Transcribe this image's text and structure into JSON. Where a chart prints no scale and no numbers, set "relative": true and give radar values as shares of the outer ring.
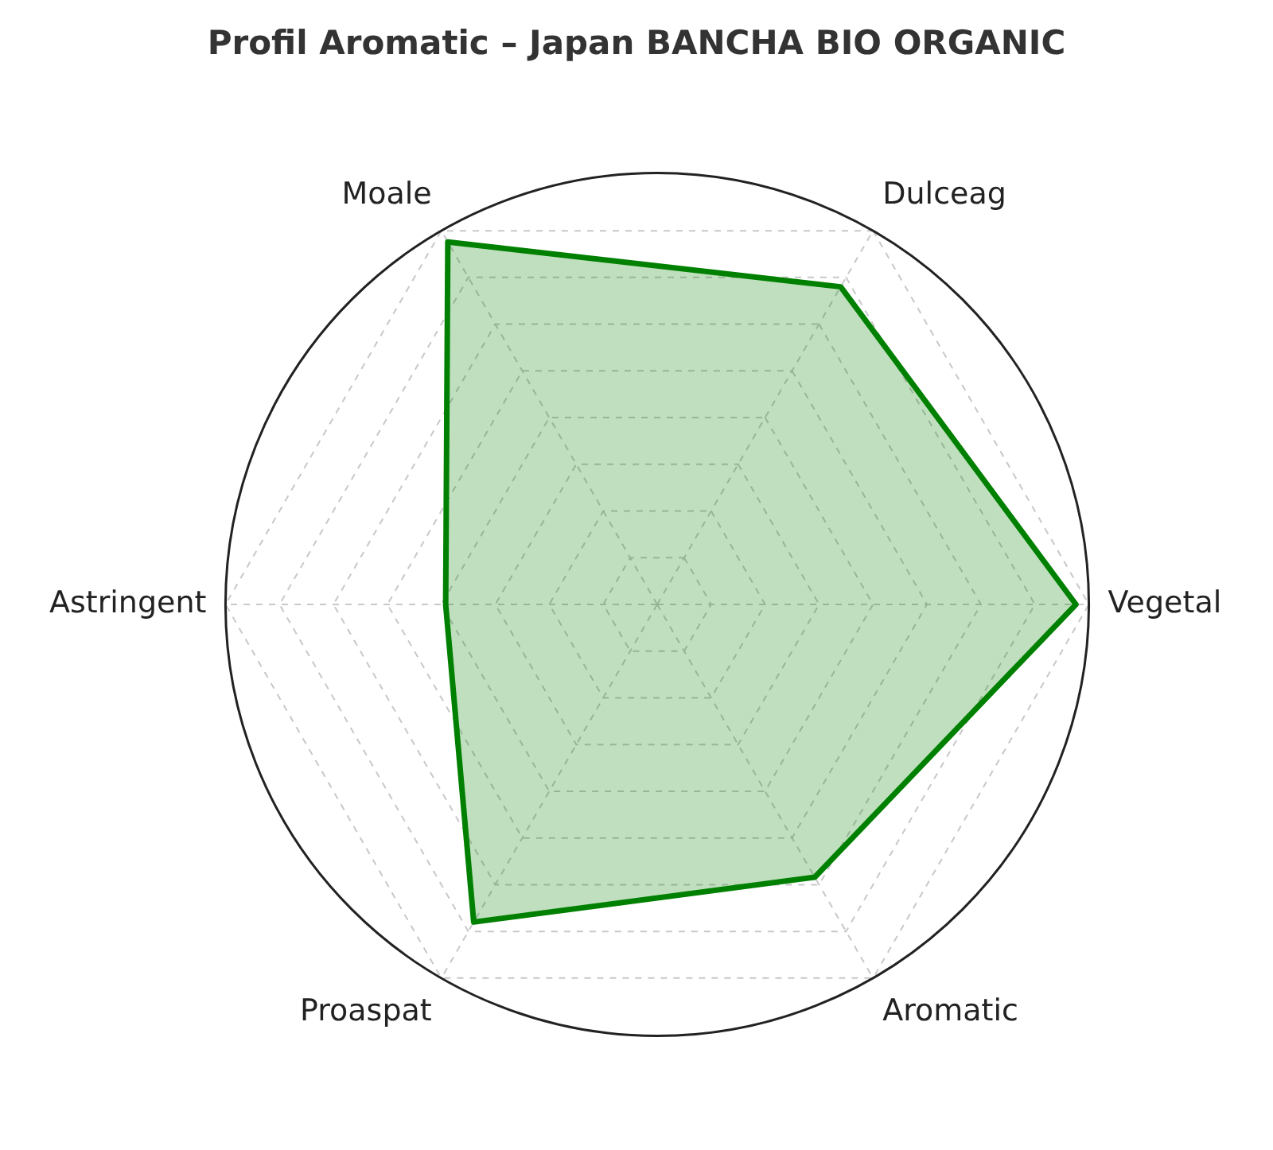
{
  "chart_data": {
    "type": "radar",
    "title": "Profil Aromatic – Japan BANCHA BIO ORGANIC",
    "categories": [
      "Dulceag",
      "Vegetal",
      "Aromatic",
      "Proaspat",
      "Astringent",
      "Moale"
    ],
    "relative": true,
    "grid": true,
    "legend": false,
    "marker": "none",
    "line_style": "solid",
    "series": [
      {
        "color": "#008000",
        "values": [
          0.85,
          0.97,
          0.73,
          0.85,
          0.49,
          0.97
        ]
      }
    ]
  }
}
